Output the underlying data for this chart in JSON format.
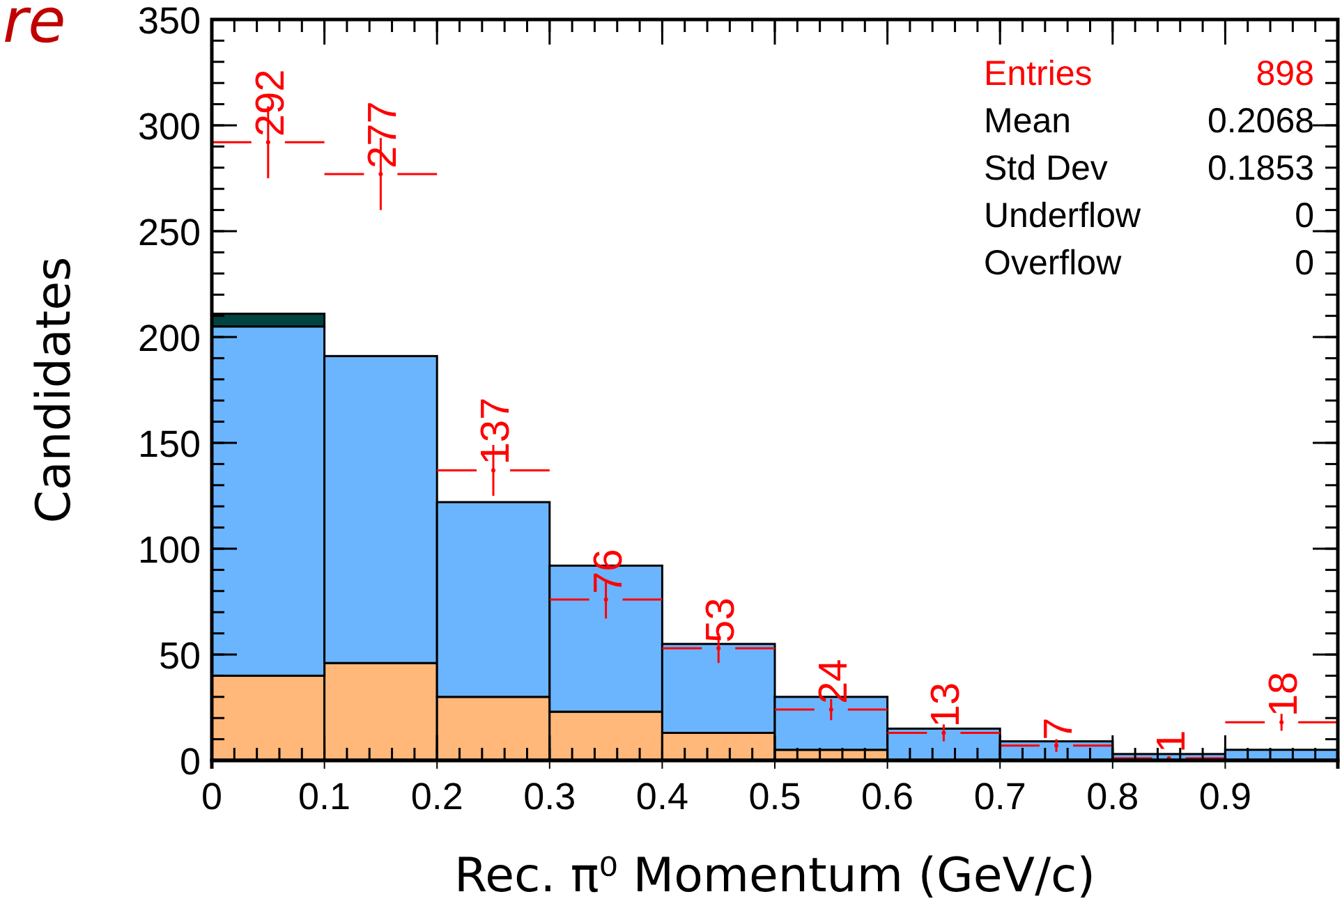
{
  "chart_data": {
    "type": "bar",
    "xlabel": "Rec. π⁰ Momentum (GeV/c)",
    "ylabel": "Candidates",
    "x": [
      0.05,
      0.15,
      0.25,
      0.35,
      0.45,
      0.55,
      0.65,
      0.75,
      0.85,
      0.95
    ],
    "stacked": true,
    "series": [
      {
        "color": "#ffb87a",
        "values": [
          40,
          46,
          30,
          23,
          13,
          5,
          0,
          0,
          0,
          0
        ]
      },
      {
        "color": "#6bb5ff",
        "values": [
          165,
          145,
          92,
          69,
          42,
          25,
          15,
          9,
          3,
          5
        ]
      },
      {
        "color": "#014340",
        "values": [
          6,
          0,
          0,
          0,
          0,
          0,
          0,
          0,
          0,
          0
        ]
      },
      {
        "type": "scatter",
        "color": "#ff0000",
        "x": [
          0.05,
          0.15,
          0.25,
          0.35,
          0.45,
          0.55,
          0.65,
          0.75,
          0.85,
          0.95
        ],
        "values": [
          292,
          277,
          137,
          76,
          53,
          24,
          13,
          7,
          1,
          18
        ],
        "errors": [
          17,
          17,
          12,
          9,
          7,
          5,
          4,
          3,
          null,
          4
        ],
        "xerrors": [
          0.05,
          0.05,
          0.05,
          0.05,
          0.05,
          0.05,
          0.05,
          0.05,
          0.05,
          0.05
        ],
        "data_labels": true
      }
    ],
    "xlim": [
      0,
      1
    ],
    "xticks": [
      0,
      0.1,
      0.2,
      0.3,
      0.4,
      0.5,
      0.6,
      0.7,
      0.8,
      0.9
    ],
    "ylim": [
      0,
      350
    ],
    "yticks": [
      0,
      50,
      100,
      150,
      200,
      250,
      300,
      350
    ],
    "grid": false,
    "annotations": [
      "re",
      "Entries",
      "898",
      "Mean",
      "0.2068",
      "Std Dev",
      "0.1853",
      "Underflow",
      "0",
      "Overflow",
      "0"
    ]
  }
}
